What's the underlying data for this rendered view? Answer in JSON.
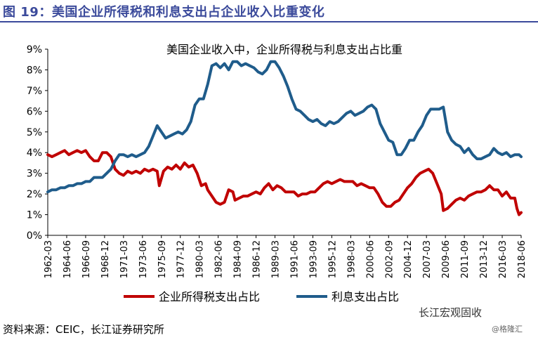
{
  "figure_title": "图 19：美国企业所得税和利息支出占企业收入比重变化",
  "source": "资料来源：CEIC，长江证券研究所",
  "watermark": "长江宏观固收",
  "watermark2": "@格隆汇",
  "colors": {
    "title": "#3b4a9b",
    "tax_series": "#c00000",
    "interest_series": "#1f5c8b"
  },
  "chart_data": {
    "type": "line",
    "title": "美国企业收入中，企业所得税与利息支出占比重",
    "ylim": [
      0,
      9
    ],
    "yticks": [
      "0%",
      "1%",
      "2%",
      "3%",
      "4%",
      "5%",
      "6%",
      "7%",
      "8%",
      "9%"
    ],
    "xlim": [
      0,
      225
    ],
    "xticks": [
      {
        "label": "1962-03",
        "i": 0
      },
      {
        "label": "1964-06",
        "i": 9
      },
      {
        "label": "1966-09",
        "i": 18
      },
      {
        "label": "1968-12",
        "i": 27
      },
      {
        "label": "1971-03",
        "i": 36
      },
      {
        "label": "1973-06",
        "i": 45
      },
      {
        "label": "1975-09",
        "i": 54
      },
      {
        "label": "1977-12",
        "i": 63
      },
      {
        "label": "1980-03",
        "i": 72
      },
      {
        "label": "1982-06",
        "i": 81
      },
      {
        "label": "1984-09",
        "i": 90
      },
      {
        "label": "1986-12",
        "i": 99
      },
      {
        "label": "1989-03",
        "i": 108
      },
      {
        "label": "1991-06",
        "i": 117
      },
      {
        "label": "1993-09",
        "i": 126
      },
      {
        "label": "1995-12",
        "i": 135
      },
      {
        "label": "1998-03",
        "i": 144
      },
      {
        "label": "2000-06",
        "i": 153
      },
      {
        "label": "2002-09",
        "i": 162
      },
      {
        "label": "2004-12",
        "i": 171
      },
      {
        "label": "2007-03",
        "i": 180
      },
      {
        "label": "2009-06",
        "i": 189
      },
      {
        "label": "2011-09",
        "i": 198
      },
      {
        "label": "2013-12",
        "i": 207
      },
      {
        "label": "2016-03",
        "i": 216
      },
      {
        "label": "2018-06",
        "i": 225
      }
    ],
    "grid": false,
    "legend_position": "bottom",
    "series": [
      {
        "name": "企业所得税支出占比",
        "color": "#c00000",
        "points": [
          [
            0,
            3.9
          ],
          [
            2,
            3.8
          ],
          [
            4,
            3.9
          ],
          [
            6,
            4.0
          ],
          [
            8,
            4.1
          ],
          [
            10,
            3.9
          ],
          [
            12,
            4.0
          ],
          [
            14,
            4.1
          ],
          [
            16,
            4.0
          ],
          [
            18,
            4.1
          ],
          [
            20,
            3.8
          ],
          [
            22,
            3.6
          ],
          [
            24,
            3.6
          ],
          [
            26,
            4.0
          ],
          [
            28,
            4.0
          ],
          [
            30,
            3.8
          ],
          [
            32,
            3.2
          ],
          [
            34,
            3.0
          ],
          [
            36,
            2.9
          ],
          [
            38,
            3.1
          ],
          [
            40,
            3.0
          ],
          [
            42,
            3.1
          ],
          [
            44,
            3.0
          ],
          [
            46,
            3.2
          ],
          [
            48,
            3.1
          ],
          [
            50,
            3.2
          ],
          [
            52,
            3.1
          ],
          [
            53,
            2.4
          ],
          [
            55,
            3.1
          ],
          [
            57,
            3.3
          ],
          [
            59,
            3.2
          ],
          [
            61,
            3.4
          ],
          [
            63,
            3.2
          ],
          [
            65,
            3.5
          ],
          [
            67,
            3.3
          ],
          [
            69,
            3.4
          ],
          [
            71,
            3.0
          ],
          [
            73,
            2.4
          ],
          [
            75,
            2.5
          ],
          [
            76,
            2.2
          ],
          [
            78,
            1.9
          ],
          [
            80,
            1.6
          ],
          [
            82,
            1.5
          ],
          [
            84,
            1.6
          ],
          [
            86,
            2.2
          ],
          [
            88,
            2.1
          ],
          [
            89,
            1.7
          ],
          [
            91,
            1.8
          ],
          [
            93,
            1.9
          ],
          [
            95,
            1.9
          ],
          [
            97,
            2.0
          ],
          [
            99,
            2.1
          ],
          [
            101,
            2.0
          ],
          [
            103,
            2.3
          ],
          [
            105,
            2.5
          ],
          [
            107,
            2.2
          ],
          [
            109,
            2.4
          ],
          [
            111,
            2.3
          ],
          [
            113,
            2.1
          ],
          [
            115,
            2.1
          ],
          [
            117,
            2.1
          ],
          [
            119,
            1.9
          ],
          [
            121,
            2.0
          ],
          [
            123,
            2.0
          ],
          [
            125,
            2.1
          ],
          [
            127,
            2.1
          ],
          [
            129,
            2.3
          ],
          [
            131,
            2.5
          ],
          [
            133,
            2.6
          ],
          [
            135,
            2.5
          ],
          [
            137,
            2.6
          ],
          [
            139,
            2.7
          ],
          [
            141,
            2.6
          ],
          [
            143,
            2.6
          ],
          [
            145,
            2.6
          ],
          [
            147,
            2.4
          ],
          [
            149,
            2.5
          ],
          [
            151,
            2.4
          ],
          [
            153,
            2.3
          ],
          [
            155,
            2.3
          ],
          [
            157,
            2.0
          ],
          [
            159,
            1.6
          ],
          [
            161,
            1.4
          ],
          [
            163,
            1.4
          ],
          [
            165,
            1.6
          ],
          [
            167,
            1.7
          ],
          [
            169,
            2.0
          ],
          [
            171,
            2.3
          ],
          [
            173,
            2.5
          ],
          [
            175,
            2.8
          ],
          [
            177,
            3.0
          ],
          [
            179,
            3.1
          ],
          [
            181,
            3.2
          ],
          [
            183,
            3.0
          ],
          [
            185,
            2.5
          ],
          [
            187,
            2.0
          ],
          [
            188,
            1.2
          ],
          [
            190,
            1.3
          ],
          [
            192,
            1.5
          ],
          [
            194,
            1.7
          ],
          [
            196,
            1.8
          ],
          [
            198,
            1.7
          ],
          [
            200,
            1.9
          ],
          [
            202,
            2.0
          ],
          [
            204,
            2.1
          ],
          [
            206,
            2.1
          ],
          [
            208,
            2.2
          ],
          [
            210,
            2.4
          ],
          [
            212,
            2.2
          ],
          [
            214,
            2.2
          ],
          [
            216,
            1.9
          ],
          [
            218,
            2.1
          ],
          [
            220,
            1.8
          ],
          [
            222,
            1.8
          ],
          [
            223,
            1.3
          ],
          [
            224,
            1.0
          ],
          [
            225,
            1.1
          ]
        ]
      },
      {
        "name": "利息支出占比",
        "color": "#1f5c8b",
        "points": [
          [
            0,
            2.1
          ],
          [
            2,
            2.2
          ],
          [
            4,
            2.2
          ],
          [
            6,
            2.3
          ],
          [
            8,
            2.3
          ],
          [
            10,
            2.4
          ],
          [
            12,
            2.4
          ],
          [
            14,
            2.5
          ],
          [
            16,
            2.5
          ],
          [
            18,
            2.6
          ],
          [
            20,
            2.6
          ],
          [
            22,
            2.8
          ],
          [
            24,
            2.8
          ],
          [
            26,
            2.8
          ],
          [
            28,
            3.0
          ],
          [
            30,
            3.2
          ],
          [
            32,
            3.6
          ],
          [
            34,
            3.9
          ],
          [
            36,
            3.9
          ],
          [
            38,
            3.8
          ],
          [
            40,
            3.9
          ],
          [
            42,
            3.8
          ],
          [
            44,
            3.9
          ],
          [
            46,
            4.0
          ],
          [
            48,
            4.3
          ],
          [
            50,
            4.8
          ],
          [
            52,
            5.3
          ],
          [
            54,
            5.0
          ],
          [
            56,
            4.7
          ],
          [
            58,
            4.8
          ],
          [
            60,
            4.9
          ],
          [
            62,
            5.0
          ],
          [
            64,
            4.9
          ],
          [
            66,
            5.1
          ],
          [
            68,
            5.5
          ],
          [
            70,
            6.3
          ],
          [
            72,
            6.6
          ],
          [
            74,
            6.6
          ],
          [
            76,
            7.3
          ],
          [
            78,
            8.2
          ],
          [
            80,
            8.3
          ],
          [
            82,
            8.1
          ],
          [
            84,
            8.3
          ],
          [
            86,
            8.0
          ],
          [
            88,
            8.4
          ],
          [
            90,
            8.4
          ],
          [
            92,
            8.2
          ],
          [
            94,
            8.3
          ],
          [
            96,
            8.2
          ],
          [
            98,
            8.1
          ],
          [
            100,
            7.9
          ],
          [
            102,
            7.8
          ],
          [
            104,
            8.0
          ],
          [
            106,
            8.4
          ],
          [
            108,
            8.4
          ],
          [
            110,
            8.1
          ],
          [
            112,
            7.7
          ],
          [
            114,
            7.2
          ],
          [
            116,
            6.6
          ],
          [
            118,
            6.1
          ],
          [
            120,
            6.0
          ],
          [
            122,
            5.8
          ],
          [
            124,
            5.6
          ],
          [
            126,
            5.5
          ],
          [
            128,
            5.6
          ],
          [
            130,
            5.4
          ],
          [
            132,
            5.3
          ],
          [
            134,
            5.5
          ],
          [
            136,
            5.4
          ],
          [
            138,
            5.5
          ],
          [
            140,
            5.7
          ],
          [
            142,
            5.9
          ],
          [
            144,
            6.0
          ],
          [
            146,
            5.8
          ],
          [
            148,
            5.9
          ],
          [
            150,
            6.0
          ],
          [
            152,
            6.2
          ],
          [
            154,
            6.3
          ],
          [
            156,
            6.1
          ],
          [
            158,
            5.4
          ],
          [
            160,
            5.0
          ],
          [
            162,
            4.6
          ],
          [
            164,
            4.5
          ],
          [
            166,
            3.9
          ],
          [
            168,
            3.9
          ],
          [
            170,
            4.2
          ],
          [
            172,
            4.6
          ],
          [
            174,
            4.6
          ],
          [
            176,
            5.0
          ],
          [
            178,
            5.3
          ],
          [
            180,
            5.8
          ],
          [
            182,
            6.1
          ],
          [
            184,
            6.1
          ],
          [
            186,
            6.1
          ],
          [
            188,
            6.2
          ],
          [
            190,
            5.0
          ],
          [
            192,
            4.6
          ],
          [
            194,
            4.4
          ],
          [
            196,
            4.3
          ],
          [
            198,
            4.0
          ],
          [
            200,
            4.2
          ],
          [
            202,
            3.9
          ],
          [
            204,
            3.7
          ],
          [
            206,
            3.7
          ],
          [
            208,
            3.8
          ],
          [
            210,
            3.9
          ],
          [
            212,
            4.2
          ],
          [
            214,
            4.0
          ],
          [
            216,
            3.9
          ],
          [
            218,
            4.0
          ],
          [
            220,
            3.8
          ],
          [
            222,
            3.9
          ],
          [
            224,
            3.9
          ],
          [
            225,
            3.8
          ]
        ]
      }
    ]
  }
}
